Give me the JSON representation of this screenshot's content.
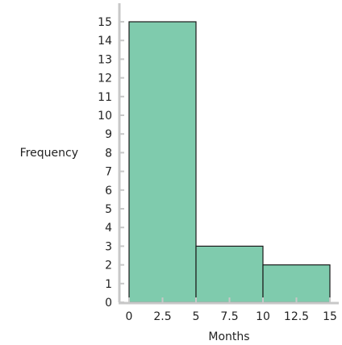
{
  "chart_data": {
    "type": "bar",
    "title": "",
    "xlabel": "Months",
    "ylabel": "Frequency",
    "bins": [
      {
        "start": 0,
        "end": 5,
        "value": 15
      },
      {
        "start": 5,
        "end": 10,
        "value": 3
      },
      {
        "start": 10,
        "end": 15,
        "value": 2
      }
    ],
    "xticks": [
      {
        "value": 0,
        "label": "0"
      },
      {
        "value": 2.5,
        "label": "2.5"
      },
      {
        "value": 5,
        "label": "5"
      },
      {
        "value": 7.5,
        "label": "7.5"
      },
      {
        "value": 10,
        "label": "10"
      },
      {
        "value": 12.5,
        "label": "12.5"
      },
      {
        "value": 15,
        "label": "15"
      }
    ],
    "yticks": [
      {
        "value": 0,
        "label": "0"
      },
      {
        "value": 1,
        "label": "1"
      },
      {
        "value": 2,
        "label": "2"
      },
      {
        "value": 3,
        "label": "3"
      },
      {
        "value": 4,
        "label": "4"
      },
      {
        "value": 5,
        "label": "5"
      },
      {
        "value": 6,
        "label": "6"
      },
      {
        "value": 7,
        "label": "7"
      },
      {
        "value": 8,
        "label": "8"
      },
      {
        "value": 9,
        "label": "9"
      },
      {
        "value": 10,
        "label": "10"
      },
      {
        "value": 11,
        "label": "11"
      },
      {
        "value": 12,
        "label": "12"
      },
      {
        "value": 13,
        "label": "13"
      },
      {
        "value": 14,
        "label": "14"
      },
      {
        "value": 15,
        "label": "15"
      }
    ],
    "xlim": [
      0,
      15
    ],
    "ylim": [
      0,
      15
    ],
    "grid": false,
    "colors": {
      "bar_fill": "#7fcbad",
      "bar_stroke": "#1a1a1a",
      "axis": "#c8c8c8"
    }
  }
}
